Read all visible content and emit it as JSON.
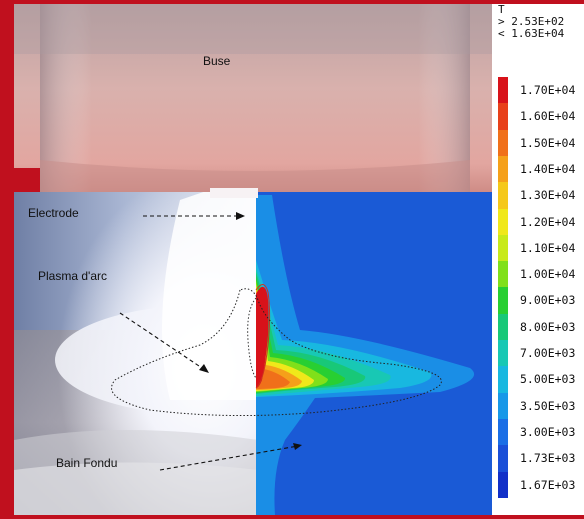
{
  "labels": {
    "buse": "Buse",
    "electrode": "Electrode",
    "plasma": "Plasma d'arc",
    "bain": "Bain Fondu"
  },
  "legend": {
    "variable": "T",
    "max_line": "> 2.53E+02",
    "min_line": "< 1.63E+04",
    "levels": [
      {
        "label": "1.70E+04",
        "color": "#d8121a"
      },
      {
        "label": "1.60E+04",
        "color": "#e8401a"
      },
      {
        "label": "1.50E+04",
        "color": "#f0701a"
      },
      {
        "label": "1.40E+04",
        "color": "#f5a01a"
      },
      {
        "label": "1.30E+04",
        "color": "#f5c81a"
      },
      {
        "label": "1.20E+04",
        "color": "#f0e81a"
      },
      {
        "label": "1.10E+04",
        "color": "#c8ea1a"
      },
      {
        "label": "1.00E+04",
        "color": "#80e01a"
      },
      {
        "label": "9.00E+03",
        "color": "#28cf32"
      },
      {
        "label": "8.00E+03",
        "color": "#18c878"
      },
      {
        "label": "7.00E+03",
        "color": "#18c8b4"
      },
      {
        "label": "5.00E+03",
        "color": "#18b8e0"
      },
      {
        "label": "3.50E+03",
        "color": "#1898e8"
      },
      {
        "label": "3.00E+03",
        "color": "#1a6ee6"
      },
      {
        "label": "1.73E+03",
        "color": "#1a4fd8"
      },
      {
        "label": "1.67E+03",
        "color": "#1230c8"
      }
    ]
  },
  "colors": {
    "frame": "#c0101e",
    "sim_background": "#1a5ad6",
    "nozzle": "#dba9a5"
  }
}
